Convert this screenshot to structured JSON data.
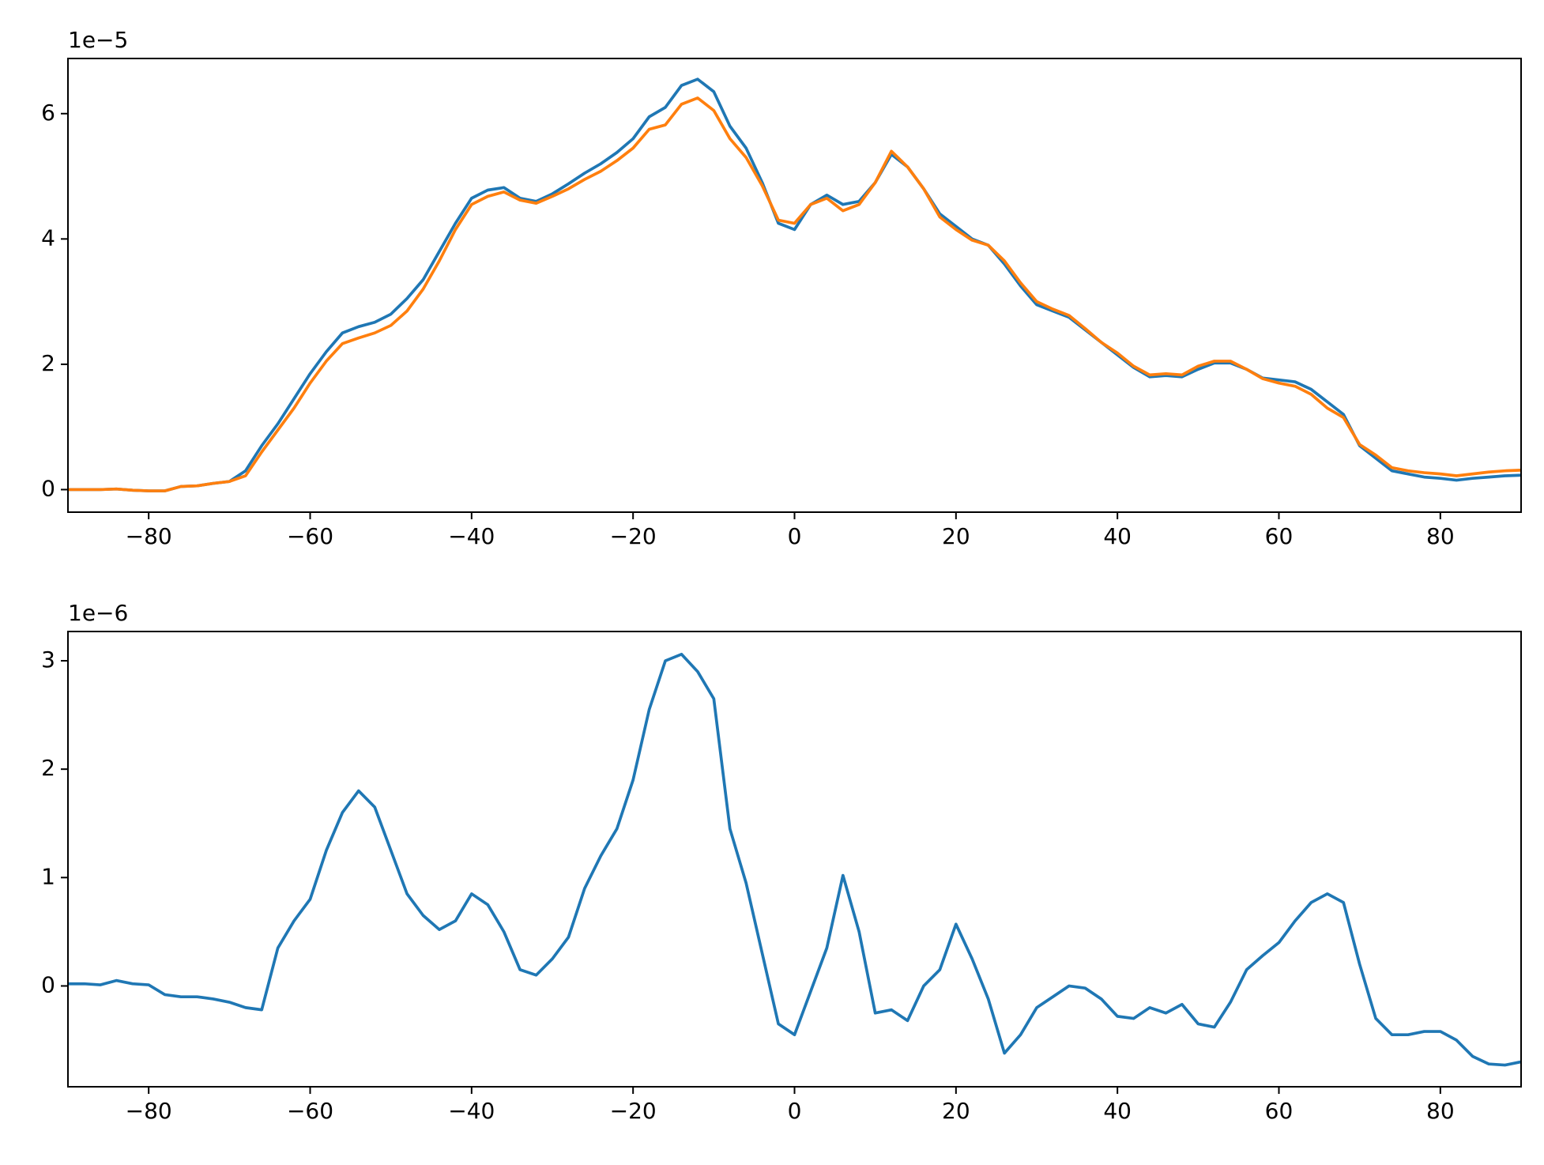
{
  "chart_data": [
    {
      "type": "line",
      "offset_label": "1e−5",
      "x": [
        -90,
        -88,
        -86,
        -84,
        -82,
        -80,
        -78,
        -76,
        -74,
        -72,
        -70,
        -68,
        -66,
        -64,
        -62,
        -60,
        -58,
        -56,
        -54,
        -52,
        -50,
        -48,
        -46,
        -44,
        -42,
        -40,
        -38,
        -36,
        -34,
        -32,
        -30,
        -28,
        -26,
        -24,
        -22,
        -20,
        -18,
        -16,
        -14,
        -12,
        -10,
        -8,
        -6,
        -4,
        -2,
        0,
        2,
        4,
        6,
        8,
        10,
        12,
        14,
        16,
        18,
        20,
        22,
        24,
        26,
        28,
        30,
        32,
        34,
        36,
        38,
        40,
        42,
        44,
        46,
        48,
        50,
        52,
        54,
        56,
        58,
        60,
        62,
        64,
        66,
        68,
        70,
        72,
        74,
        76,
        78,
        80,
        82,
        84,
        86,
        88,
        90
      ],
      "series": [
        {
          "color": "#1f77b4",
          "values": [
            0,
            0,
            0,
            0.01,
            -0.01,
            -0.02,
            -0.02,
            0.05,
            0.06,
            0.1,
            0.13,
            0.3,
            0.7,
            1.05,
            1.45,
            1.85,
            2.2,
            2.5,
            2.6,
            2.67,
            2.8,
            3.05,
            3.35,
            3.8,
            4.25,
            4.65,
            4.78,
            4.82,
            4.65,
            4.6,
            4.72,
            4.88,
            5.05,
            5.2,
            5.38,
            5.6,
            5.95,
            6.1,
            6.45,
            6.55,
            6.35,
            5.8,
            5.45,
            4.9,
            4.25,
            4.15,
            4.55,
            4.7,
            4.55,
            4.6,
            4.9,
            5.35,
            5.15,
            4.8,
            4.4,
            4.2,
            4.0,
            3.9,
            3.6,
            3.25,
            2.95,
            2.85,
            2.75,
            2.55,
            2.35,
            2.15,
            1.95,
            1.8,
            1.82,
            1.8,
            1.92,
            2.02,
            2.02,
            1.92,
            1.78,
            1.75,
            1.72,
            1.6,
            1.4,
            1.2,
            0.7,
            0.5,
            0.3,
            0.25,
            0.2,
            0.18,
            0.15,
            0.18,
            0.2,
            0.22,
            0.23
          ]
        },
        {
          "color": "#ff7f0e",
          "values": [
            0,
            0,
            0,
            0.01,
            -0.01,
            -0.02,
            -0.02,
            0.05,
            0.06,
            0.1,
            0.13,
            0.22,
            0.6,
            0.95,
            1.3,
            1.7,
            2.05,
            2.33,
            2.42,
            2.5,
            2.62,
            2.85,
            3.2,
            3.65,
            4.15,
            4.55,
            4.68,
            4.75,
            4.62,
            4.57,
            4.68,
            4.8,
            4.95,
            5.08,
            5.25,
            5.45,
            5.75,
            5.82,
            6.15,
            6.25,
            6.05,
            5.6,
            5.3,
            4.85,
            4.3,
            4.25,
            4.55,
            4.65,
            4.45,
            4.55,
            4.9,
            5.4,
            5.15,
            4.8,
            4.35,
            4.15,
            3.98,
            3.9,
            3.65,
            3.3,
            3.0,
            2.88,
            2.78,
            2.57,
            2.35,
            2.18,
            1.97,
            1.83,
            1.85,
            1.83,
            1.97,
            2.05,
            2.05,
            1.92,
            1.77,
            1.7,
            1.65,
            1.52,
            1.3,
            1.15,
            0.72,
            0.55,
            0.35,
            0.3,
            0.27,
            0.25,
            0.22,
            0.25,
            0.28,
            0.3,
            0.31
          ]
        }
      ],
      "xlim": [
        -90,
        90
      ],
      "ylim": [
        -0.36,
        6.88
      ],
      "xticks": [
        {
          "value": -80,
          "label": "−80"
        },
        {
          "value": -60,
          "label": "−60"
        },
        {
          "value": -40,
          "label": "−40"
        },
        {
          "value": -20,
          "label": "−20"
        },
        0,
        20,
        40,
        60,
        80
      ],
      "yticks": [
        0,
        2,
        4,
        6
      ]
    },
    {
      "type": "line",
      "offset_label": "1e−6",
      "x": [
        -90,
        -88,
        -86,
        -84,
        -82,
        -80,
        -78,
        -76,
        -74,
        -72,
        -70,
        -68,
        -66,
        -64,
        -62,
        -60,
        -58,
        -56,
        -54,
        -52,
        -50,
        -48,
        -46,
        -44,
        -42,
        -40,
        -38,
        -36,
        -34,
        -32,
        -30,
        -28,
        -26,
        -24,
        -22,
        -20,
        -18,
        -16,
        -14,
        -12,
        -10,
        -8,
        -6,
        -4,
        -2,
        0,
        2,
        4,
        6,
        8,
        10,
        12,
        14,
        16,
        18,
        20,
        22,
        24,
        26,
        28,
        30,
        32,
        34,
        36,
        38,
        40,
        42,
        44,
        46,
        48,
        50,
        52,
        54,
        56,
        58,
        60,
        62,
        64,
        66,
        68,
        70,
        72,
        74,
        76,
        78,
        80,
        82,
        84,
        86,
        88,
        90
      ],
      "series": [
        {
          "color": "#1f77b4",
          "values": [
            0.02,
            0.02,
            0.01,
            0.05,
            0.02,
            0.01,
            -0.08,
            -0.1,
            -0.1,
            -0.12,
            -0.15,
            -0.2,
            -0.22,
            0.35,
            0.6,
            0.8,
            1.25,
            1.6,
            1.8,
            1.65,
            1.25,
            0.85,
            0.65,
            0.52,
            0.6,
            0.85,
            0.75,
            0.5,
            0.15,
            0.1,
            0.25,
            0.45,
            0.9,
            1.2,
            1.45,
            1.9,
            2.55,
            3.0,
            3.06,
            2.9,
            2.65,
            1.45,
            0.95,
            0.3,
            -0.35,
            -0.45,
            -0.05,
            0.35,
            1.02,
            0.5,
            -0.25,
            -0.22,
            -0.32,
            0.0,
            0.15,
            0.57,
            0.25,
            -0.12,
            -0.62,
            -0.45,
            -0.2,
            -0.1,
            0.0,
            -0.02,
            -0.12,
            -0.28,
            -0.3,
            -0.2,
            -0.25,
            -0.17,
            -0.35,
            -0.38,
            -0.15,
            0.15,
            0.28,
            0.4,
            0.6,
            0.77,
            0.85,
            0.77,
            0.2,
            -0.3,
            -0.45,
            -0.45,
            -0.42,
            -0.42,
            -0.5,
            -0.65,
            -0.72,
            -0.73,
            -0.7
          ]
        }
      ],
      "xlim": [
        -90,
        90
      ],
      "ylim": [
        -0.93,
        3.27
      ],
      "xticks": [
        {
          "value": -80,
          "label": "−80"
        },
        {
          "value": -60,
          "label": "−60"
        },
        {
          "value": -40,
          "label": "−40"
        },
        {
          "value": -20,
          "label": "−20"
        },
        0,
        20,
        40,
        60,
        80
      ],
      "yticks": [
        0,
        1,
        2,
        3
      ]
    }
  ]
}
